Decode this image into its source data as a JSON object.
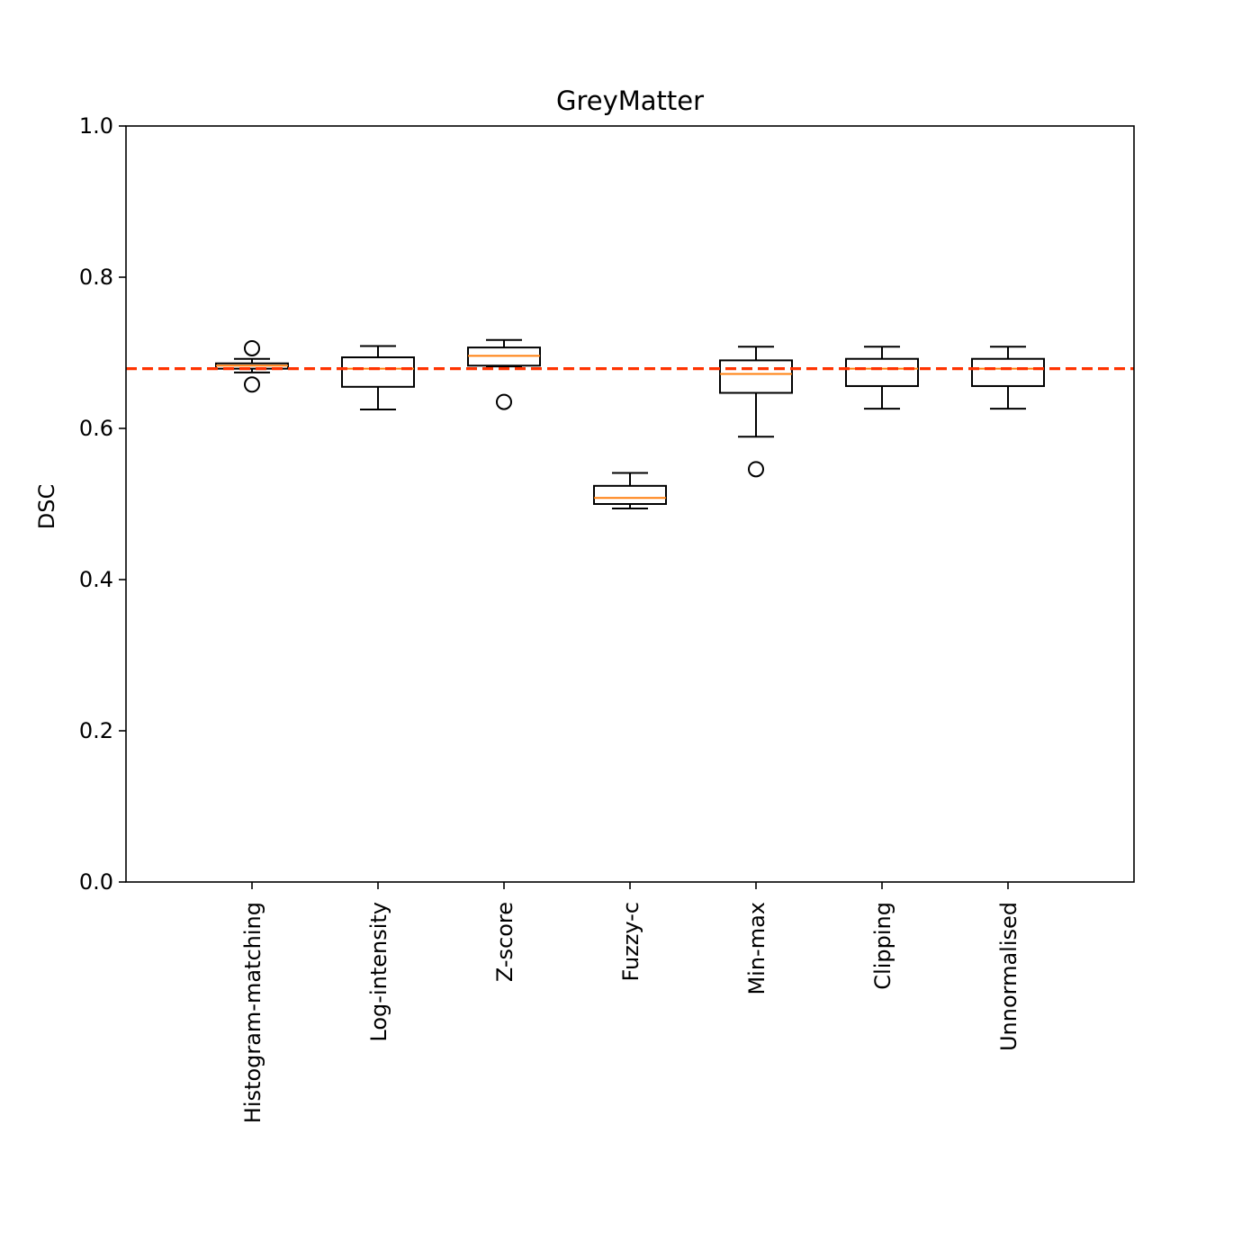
{
  "chart_data": {
    "type": "box",
    "title": "GreyMatter",
    "xlabel": "",
    "ylabel": "DSC",
    "ylim": [
      0.0,
      1.0
    ],
    "yticks": [
      "0.0",
      "0.2",
      "0.4",
      "0.6",
      "0.8",
      "1.0"
    ],
    "categories": [
      "Histogram-matching",
      "Log-intensity",
      "Z-score",
      "Fuzzy-c",
      "Min-max",
      "Clipping",
      "Unnormalised"
    ],
    "boxes": [
      {
        "label": "Histogram-matching",
        "whisker_low": 0.674,
        "q1": 0.679,
        "median": 0.683,
        "q3": 0.686,
        "whisker_high": 0.692,
        "outliers": [
          0.706,
          0.658
        ]
      },
      {
        "label": "Log-intensity",
        "whisker_low": 0.625,
        "q1": 0.655,
        "median": 0.679,
        "q3": 0.694,
        "whisker_high": 0.709,
        "outliers": []
      },
      {
        "label": "Z-score",
        "whisker_low": 0.682,
        "q1": 0.683,
        "median": 0.696,
        "q3": 0.707,
        "whisker_high": 0.717,
        "outliers": [
          0.635
        ]
      },
      {
        "label": "Fuzzy-c",
        "whisker_low": 0.494,
        "q1": 0.5,
        "median": 0.508,
        "q3": 0.524,
        "whisker_high": 0.541,
        "outliers": []
      },
      {
        "label": "Min-max",
        "whisker_low": 0.589,
        "q1": 0.647,
        "median": 0.672,
        "q3": 0.69,
        "whisker_high": 0.708,
        "outliers": [
          0.546
        ]
      },
      {
        "label": "Clipping",
        "whisker_low": 0.626,
        "q1": 0.656,
        "median": 0.679,
        "q3": 0.692,
        "whisker_high": 0.708,
        "outliers": []
      },
      {
        "label": "Unnormalised",
        "whisker_low": 0.626,
        "q1": 0.656,
        "median": 0.679,
        "q3": 0.692,
        "whisker_high": 0.708,
        "outliers": []
      }
    ],
    "reference_line": {
      "value": 0.679,
      "style": "dashed",
      "color": "#ff3300"
    },
    "colors": {
      "box": "#000000",
      "median": "#ff7f0e",
      "reference": "#ff3300"
    },
    "grid": false,
    "legend": "none"
  }
}
